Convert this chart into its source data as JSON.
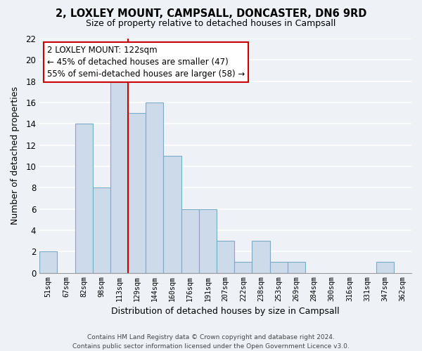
{
  "title": "2, LOXLEY MOUNT, CAMPSALL, DONCASTER, DN6 9RD",
  "subtitle": "Size of property relative to detached houses in Campsall",
  "xlabel": "Distribution of detached houses by size in Campsall",
  "ylabel": "Number of detached properties",
  "bar_color": "#ccdaea",
  "bar_edge_color": "#7aaac8",
  "bins": [
    "51sqm",
    "67sqm",
    "82sqm",
    "98sqm",
    "113sqm",
    "129sqm",
    "144sqm",
    "160sqm",
    "176sqm",
    "191sqm",
    "207sqm",
    "222sqm",
    "238sqm",
    "253sqm",
    "269sqm",
    "284sqm",
    "300sqm",
    "316sqm",
    "331sqm",
    "347sqm",
    "362sqm"
  ],
  "values": [
    2,
    0,
    14,
    8,
    18,
    15,
    16,
    11,
    6,
    6,
    3,
    1,
    3,
    1,
    1,
    0,
    0,
    0,
    0,
    1,
    0
  ],
  "ylim": [
    0,
    22
  ],
  "yticks": [
    0,
    2,
    4,
    6,
    8,
    10,
    12,
    14,
    16,
    18,
    20,
    22
  ],
  "vline_color": "#cc0000",
  "annotation_title": "2 LOXLEY MOUNT: 122sqm",
  "annotation_line1": "← 45% of detached houses are smaller (47)",
  "annotation_line2": "55% of semi-detached houses are larger (58) →",
  "footer1": "Contains HM Land Registry data © Crown copyright and database right 2024.",
  "footer2": "Contains public sector information licensed under the Open Government Licence v3.0.",
  "background_color": "#eef2f7",
  "grid_color": "#ffffff",
  "ann_box_color": "#ffffff",
  "ann_box_edge": "#cc0000",
  "vline_bin_index": 4.5
}
